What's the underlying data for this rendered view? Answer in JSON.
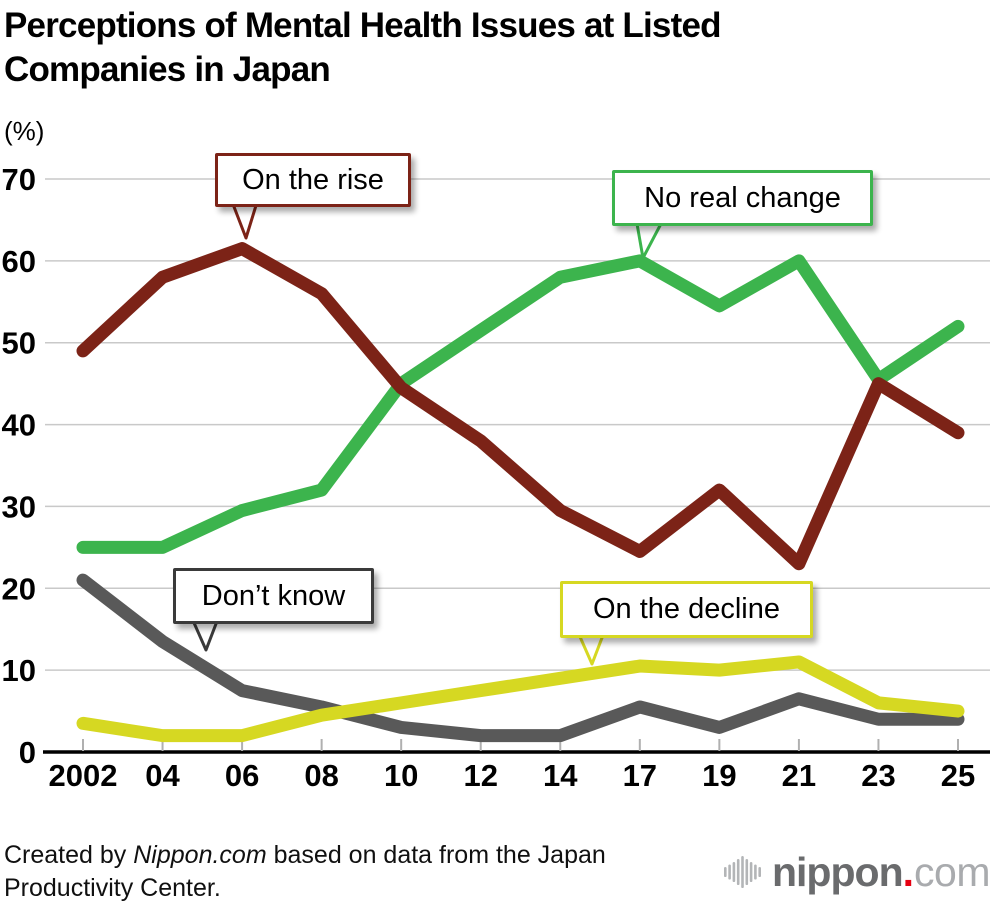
{
  "title": {
    "line1": "Perceptions of Mental Health Issues at Listed",
    "line2": "Companies in Japan"
  },
  "y_axis_unit": "(%)",
  "colors": {
    "rise": "#7c2317",
    "no_change": "#3cb44d",
    "dont_know": "#595959",
    "decline": "#d6d822",
    "grid": "#c9c9c9",
    "tick": "#b0b0b0",
    "axis": "#000000",
    "callout_gray_border": "#3a3a3a",
    "logo_gray": "#6a6b6d",
    "logo_light_gray": "#a9abae",
    "logo_red": "#e60012"
  },
  "chart_data": {
    "type": "line",
    "title": "Perceptions of Mental Health Issues at Listed Companies in Japan",
    "xlabel": "",
    "ylabel": "(%)",
    "ylim": [
      0,
      70
    ],
    "yticks": [
      0,
      10,
      20,
      30,
      40,
      50,
      60,
      70
    ],
    "grid": true,
    "legend_position": "callouts attached to lines",
    "categories": [
      "2002",
      "04",
      "06",
      "08",
      "10",
      "12",
      "14",
      "17",
      "19",
      "21",
      "23",
      "25"
    ],
    "series": [
      {
        "name": "On the rise",
        "color": "#7c2317",
        "values": [
          49,
          58,
          61.5,
          56,
          44.5,
          38,
          29.5,
          24.5,
          32,
          23,
          45,
          39
        ]
      },
      {
        "name": "No real change",
        "color": "#3cb44d",
        "values": [
          25,
          25,
          29.5,
          32,
          45,
          51.5,
          58,
          60,
          54.5,
          60,
          45.5,
          52
        ]
      },
      {
        "name": "Don’t know",
        "color": "#595959",
        "values": [
          21,
          13.5,
          7.5,
          5.5,
          3,
          2,
          2,
          5.5,
          3,
          6.5,
          4,
          4
        ]
      },
      {
        "name": "On the decline",
        "color": "#d6d822",
        "values": [
          3.5,
          2,
          2,
          4.5,
          6,
          7.5,
          9,
          10.5,
          10,
          11,
          6,
          5
        ]
      }
    ],
    "annotations": [
      {
        "label": "On the rise",
        "series": "On the rise",
        "border": "#7c2317",
        "points_to": {
          "category": "06",
          "value": 61.5
        }
      },
      {
        "label": "No real change",
        "series": "No real change",
        "border": "#3cb44d",
        "points_to": {
          "category": "17",
          "value": 60
        }
      },
      {
        "label": "Don’t know",
        "series": "Don’t know",
        "border": "#3a3a3a",
        "points_to": {
          "category": "05 (between 04 and 06)",
          "value": 12
        }
      },
      {
        "label": "On the decline",
        "series": "On the decline",
        "border": "#d6d822",
        "points_to": {
          "category": "15 (between 14 and 17)",
          "value": 9.5
        }
      }
    ]
  },
  "footer": {
    "credit_prefix": "Created by ",
    "credit_source": "Nippon.com",
    "credit_suffix": " based on data from the Japan Productivity Center.",
    "logo_text": "nippon",
    "logo_dot": ".",
    "logo_suffix": "com"
  }
}
